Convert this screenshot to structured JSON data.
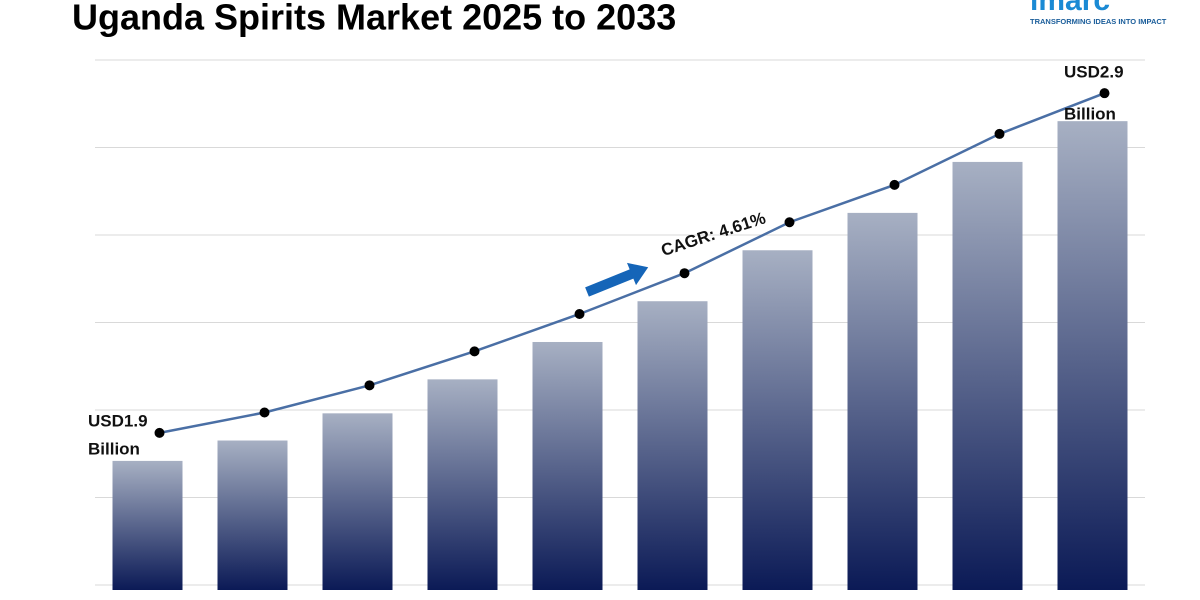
{
  "chart_data": {
    "type": "bar",
    "title": "Uganda Spirits Market 2025 to 2033",
    "logo": "imarc",
    "tagline": "TRANSFORMING IDEAS INTO IMPACT",
    "categories": [
      null,
      null,
      null,
      null,
      null,
      null,
      null,
      null,
      null,
      null
    ],
    "values": [
      1.9,
      1.96,
      2.04,
      2.14,
      2.25,
      2.37,
      2.52,
      2.63,
      2.78,
      2.9
    ],
    "color_top": "#a7b0c3",
    "color_bottom": "#0b1a56",
    "line_color": "#4a6fa5",
    "ylim": [
      1.52,
      3.08
    ],
    "grid": true,
    "start_label": [
      "USD1.9",
      "Billion"
    ],
    "end_label": [
      "USD2.9",
      "Billion"
    ],
    "cagr": "CAGR: 4.61%"
  }
}
